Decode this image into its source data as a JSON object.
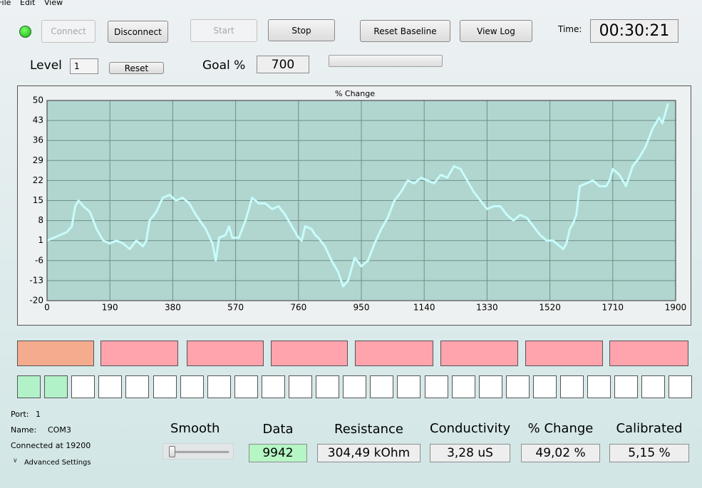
{
  "menu": [
    "File",
    "Edit",
    "View"
  ],
  "toolbar": {
    "connect": "Connect",
    "disconnect": "Disconnect",
    "start": "Start",
    "stop": "Stop",
    "reset_baseline": "Reset Baseline",
    "view_log": "View Log",
    "time_label": "Time:",
    "time": "00:30:21"
  },
  "level": {
    "label": "Level",
    "value": "1",
    "reset": "Reset",
    "goal_label": "Goal %",
    "goal": "700"
  },
  "chart_data": {
    "type": "line",
    "title": "% Change",
    "x": [
      0,
      20,
      40,
      60,
      75,
      85,
      95,
      110,
      130,
      150,
      170,
      190,
      210,
      230,
      250,
      270,
      290,
      300,
      310,
      330,
      350,
      370,
      390,
      410,
      430,
      450,
      480,
      500,
      510,
      520,
      540,
      550,
      560,
      580,
      600,
      620,
      640,
      660,
      680,
      700,
      720,
      740,
      760,
      770,
      780,
      800,
      810,
      820,
      840,
      860,
      880,
      895,
      910,
      930,
      950,
      970,
      990,
      1010,
      1030,
      1050,
      1070,
      1090,
      1110,
      1130,
      1150,
      1170,
      1190,
      1210,
      1230,
      1250,
      1270,
      1290,
      1310,
      1330,
      1350,
      1370,
      1390,
      1410,
      1430,
      1450,
      1470,
      1490,
      1510,
      1530,
      1550,
      1560,
      1570,
      1580,
      1590,
      1600,
      1610,
      1630,
      1650,
      1670,
      1690,
      1700,
      1710,
      1730,
      1750,
      1770,
      1790,
      1810,
      1830,
      1850,
      1860,
      1870,
      1877
    ],
    "series": [
      {
        "color": "#c8fcfc",
        "values": [
          1,
          2,
          3,
          4,
          6,
          13,
          15,
          13,
          11,
          5,
          1,
          0,
          1,
          0,
          -2,
          1,
          -1,
          1,
          8,
          11,
          16,
          17,
          15,
          16,
          14,
          10,
          5,
          0,
          -6,
          2,
          3,
          6,
          2,
          2,
          8,
          16,
          14,
          14,
          12,
          13,
          10,
          6,
          2,
          1,
          6,
          5,
          3,
          2,
          -1,
          -6,
          -10,
          -15,
          -13,
          -5,
          -8,
          -6,
          0,
          5,
          9,
          15,
          18,
          22,
          21,
          23,
          22,
          21,
          24,
          23,
          27,
          26,
          22,
          18,
          15,
          12,
          13,
          13,
          10,
          8,
          10,
          9,
          6,
          3,
          1,
          1,
          -1,
          -2,
          0,
          5,
          7,
          10,
          20,
          21,
          22,
          20,
          20,
          22,
          26,
          24,
          20,
          27,
          30,
          34,
          40,
          44,
          42,
          46,
          49
        ]
      }
    ],
    "xlim": [
      0,
      1900
    ],
    "xticks": [
      0,
      190,
      380,
      570,
      760,
      950,
      1140,
      1330,
      1520,
      1710,
      1900
    ],
    "ylim": [
      -20,
      50
    ],
    "yticks": [
      50,
      43,
      36,
      29,
      22,
      15,
      8,
      1,
      -6,
      -13,
      -20
    ],
    "grid": true
  },
  "connection": {
    "port_label": "Port:",
    "port": "1",
    "name_label": "Name:",
    "name": "COM3",
    "status": "Connected at 19200",
    "advanced": "Advanced Settings"
  },
  "readouts": {
    "smooth": "Smooth",
    "data_label": "Data",
    "data": "9942",
    "resistance_label": "Resistance",
    "resistance": "304,49 kOhm",
    "conductivity_label": "Conductivity",
    "conductivity": "3,28 uS",
    "change_label": "% Change",
    "change": "49,02 %",
    "calibrated_label": "Calibrated",
    "calibrated": "5,15 %"
  }
}
